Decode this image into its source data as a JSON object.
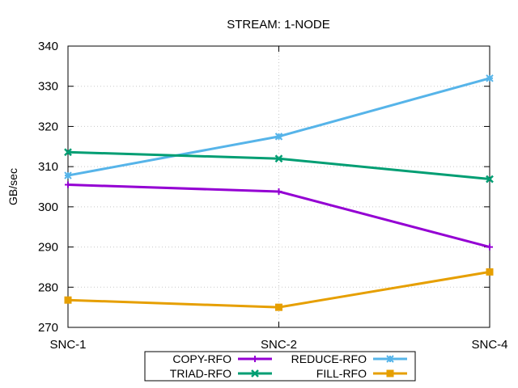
{
  "chart_data": {
    "type": "line",
    "title": "STREAM: 1-NODE",
    "xlabel": "",
    "ylabel": "GB/sec",
    "categories": [
      "SNC-1",
      "SNC-2",
      "SNC-4"
    ],
    "ylim": [
      270,
      340
    ],
    "yticks": [
      270,
      280,
      290,
      300,
      310,
      320,
      330,
      340
    ],
    "grid": true,
    "legend_position": "bottom-center",
    "series": [
      {
        "name": "COPY-RFO",
        "values": [
          305.5,
          303.8,
          290.0
        ],
        "color": "#9400d3",
        "marker": "plus"
      },
      {
        "name": "REDUCE-RFO",
        "values": [
          307.8,
          317.5,
          332.0
        ],
        "color": "#56b4e9",
        "marker": "star"
      },
      {
        "name": "TRIAD-RFO",
        "values": [
          313.6,
          312.0,
          306.9
        ],
        "color": "#009e73",
        "marker": "cross"
      },
      {
        "name": "FILL-RFO",
        "values": [
          276.8,
          275.0,
          283.8
        ],
        "color": "#e69f00",
        "marker": "square"
      }
    ]
  }
}
